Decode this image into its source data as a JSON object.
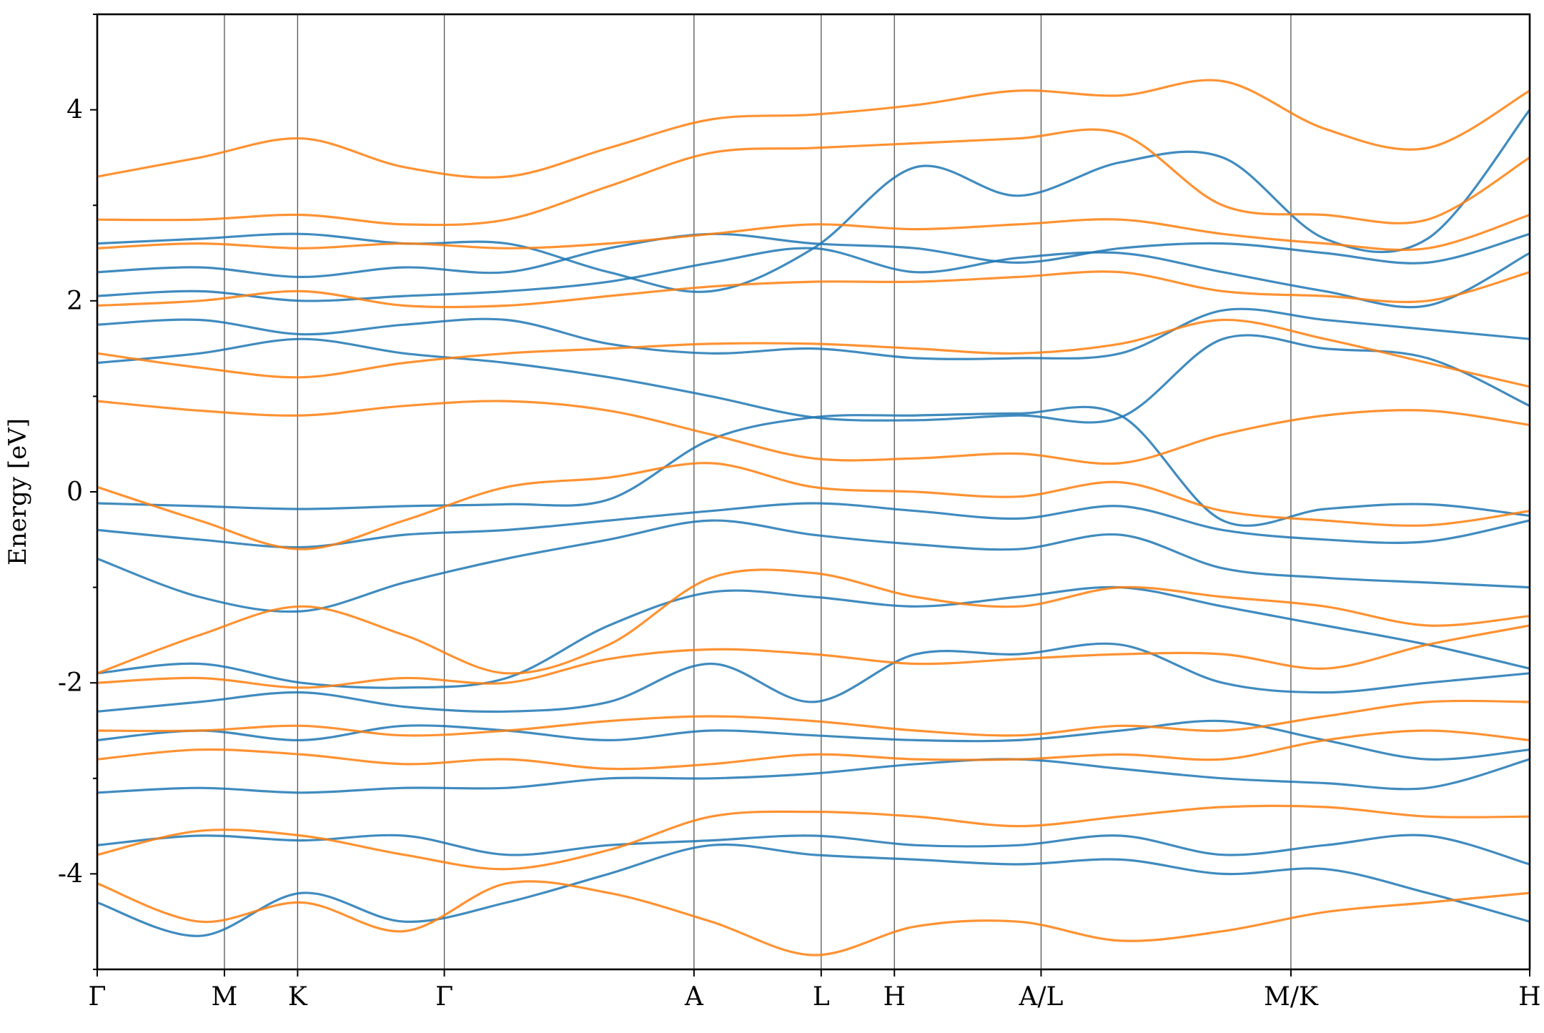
{
  "chart_data": {
    "type": "line",
    "title": "",
    "xlabel": "",
    "ylabel": "Energy [eV]",
    "ylim": [
      -5,
      5
    ],
    "yticks": [
      -4,
      -2,
      0,
      2,
      4
    ],
    "yticklabels": [
      "-4",
      "-2",
      "0",
      "2",
      "4"
    ],
    "grid": false,
    "legend": "none",
    "xticks": [
      {
        "label": "Γ",
        "k": 0.0
      },
      {
        "label": "M",
        "k": 0.0888
      },
      {
        "label": "K",
        "k": 0.1399
      },
      {
        "label": "Γ",
        "k": 0.2423
      },
      {
        "label": "A",
        "k": 0.4166
      },
      {
        "label": "L",
        "k": 0.5054
      },
      {
        "label": "H",
        "k": 0.5565
      },
      {
        "label": "A/L",
        "k": 0.6589
      },
      {
        "label": "M/K",
        "k": 0.8333
      },
      {
        "label": "H",
        "k": 1.0
      }
    ],
    "series_colors": {
      "spin_a": "#1f77b4",
      "spin_b": "#ff7f0e"
    },
    "series": [
      {
        "color": "#1f77b4",
        "values": [
          [
            -0.12,
            -0.15,
            -0.18,
            -0.15,
            -0.13,
            -0.08,
            0.55,
            0.78,
            0.8,
            0.82,
            0.8,
            -0.3,
            -0.18,
            -0.13,
            -0.25
          ],
          [
            -0.4,
            -0.5,
            -0.58,
            -0.45,
            -0.4,
            -0.3,
            -0.2,
            -0.12,
            -0.2,
            -0.28,
            -0.15,
            -0.4,
            -0.5,
            -0.52,
            -0.3
          ],
          [
            -0.7,
            -1.1,
            -1.25,
            -0.95,
            -0.7,
            -0.5,
            -0.3,
            -0.45,
            -0.55,
            -0.6,
            -0.45,
            -0.8,
            -0.9,
            -0.95,
            -1.0
          ],
          [
            -1.9,
            -1.8,
            -2.0,
            -2.05,
            -1.95,
            -1.4,
            -1.05,
            -1.1,
            -1.2,
            -1.1,
            -1.0,
            -1.2,
            -1.4,
            -1.6,
            -1.85
          ],
          [
            -2.3,
            -2.2,
            -2.1,
            -2.25,
            -2.3,
            -2.2,
            -1.8,
            -2.2,
            -1.7,
            -1.7,
            -1.6,
            -2.0,
            -2.1,
            -2.0,
            -1.9
          ],
          [
            -2.6,
            -2.5,
            -2.6,
            -2.45,
            -2.5,
            -2.6,
            -2.5,
            -2.55,
            -2.6,
            -2.6,
            -2.5,
            -2.4,
            -2.6,
            -2.8,
            -2.7
          ],
          [
            -3.15,
            -3.1,
            -3.15,
            -3.1,
            -3.1,
            -3.0,
            -3.0,
            -2.95,
            -2.85,
            -2.8,
            -2.9,
            -3.0,
            -3.05,
            -3.1,
            -2.8
          ],
          [
            -3.7,
            -3.6,
            -3.65,
            -3.6,
            -3.8,
            -3.7,
            -3.65,
            -3.6,
            -3.7,
            -3.7,
            -3.6,
            -3.8,
            -3.7,
            -3.6,
            -3.9
          ],
          [
            -4.3,
            -4.65,
            -4.2,
            -4.5,
            -4.3,
            -4.0,
            -3.7,
            -3.8,
            -3.85,
            -3.9,
            -3.85,
            -4.0,
            -3.95,
            -4.2,
            -4.5
          ],
          [
            1.35,
            1.45,
            1.6,
            1.45,
            1.35,
            1.2,
            1.0,
            0.78,
            0.75,
            0.8,
            0.78,
            1.6,
            1.5,
            1.4,
            0.9
          ],
          [
            1.75,
            1.8,
            1.65,
            1.75,
            1.8,
            1.55,
            1.45,
            1.5,
            1.4,
            1.4,
            1.45,
            1.9,
            1.8,
            1.7,
            1.6
          ],
          [
            2.05,
            2.1,
            2.0,
            2.05,
            2.1,
            2.2,
            2.4,
            2.55,
            2.3,
            2.45,
            2.5,
            2.3,
            2.1,
            1.95,
            2.5
          ],
          [
            2.3,
            2.35,
            2.25,
            2.35,
            2.3,
            2.55,
            2.7,
            2.6,
            2.55,
            2.4,
            2.55,
            2.6,
            2.5,
            2.4,
            2.7
          ],
          [
            2.6,
            2.65,
            2.7,
            2.6,
            2.6,
            2.3,
            2.1,
            2.55,
            3.4,
            3.1,
            3.45,
            3.5,
            2.65,
            2.65,
            4.0
          ]
        ]
      },
      {
        "color": "#ff7f0e",
        "values": [
          [
            0.05,
            -0.3,
            -0.6,
            -0.3,
            0.05,
            0.15,
            0.3,
            0.05,
            0.0,
            -0.05,
            0.1,
            -0.2,
            -0.3,
            -0.35,
            -0.2
          ],
          [
            -1.9,
            -1.5,
            -1.2,
            -1.5,
            -1.9,
            -1.6,
            -0.9,
            -0.85,
            -1.1,
            -1.2,
            -1.0,
            -1.1,
            -1.2,
            -1.4,
            -1.3
          ],
          [
            -2.0,
            -1.95,
            -2.05,
            -1.95,
            -2.0,
            -1.75,
            -1.65,
            -1.7,
            -1.8,
            -1.75,
            -1.7,
            -1.7,
            -1.85,
            -1.6,
            -1.4
          ],
          [
            -2.5,
            -2.5,
            -2.45,
            -2.55,
            -2.5,
            -2.4,
            -2.35,
            -2.4,
            -2.5,
            -2.55,
            -2.45,
            -2.5,
            -2.35,
            -2.2,
            -2.2
          ],
          [
            -2.8,
            -2.7,
            -2.75,
            -2.85,
            -2.8,
            -2.9,
            -2.85,
            -2.75,
            -2.8,
            -2.8,
            -2.75,
            -2.8,
            -2.6,
            -2.5,
            -2.6
          ],
          [
            -3.8,
            -3.55,
            -3.6,
            -3.8,
            -3.95,
            -3.75,
            -3.4,
            -3.35,
            -3.4,
            -3.5,
            -3.4,
            -3.3,
            -3.3,
            -3.4,
            -3.4
          ],
          [
            -4.1,
            -4.5,
            -4.3,
            -4.6,
            -4.1,
            -4.2,
            -4.5,
            -4.85,
            -4.55,
            -4.5,
            -4.7,
            -4.6,
            -4.4,
            -4.3,
            -4.2
          ],
          [
            0.95,
            0.85,
            0.8,
            0.9,
            0.95,
            0.85,
            0.6,
            0.35,
            0.35,
            0.4,
            0.3,
            0.6,
            0.8,
            0.85,
            0.7
          ],
          [
            1.45,
            1.3,
            1.2,
            1.35,
            1.45,
            1.5,
            1.55,
            1.55,
            1.5,
            1.45,
            1.55,
            1.8,
            1.6,
            1.35,
            1.1
          ],
          [
            1.95,
            2.0,
            2.1,
            1.95,
            1.95,
            2.05,
            2.15,
            2.2,
            2.2,
            2.25,
            2.3,
            2.1,
            2.05,
            2.0,
            2.3
          ],
          [
            2.55,
            2.6,
            2.55,
            2.6,
            2.55,
            2.6,
            2.7,
            2.8,
            2.75,
            2.8,
            2.85,
            2.7,
            2.6,
            2.55,
            2.9
          ],
          [
            2.85,
            2.85,
            2.9,
            2.8,
            2.85,
            3.2,
            3.55,
            3.6,
            3.65,
            3.7,
            3.75,
            3.0,
            2.9,
            2.85,
            3.5
          ],
          [
            3.3,
            3.5,
            3.7,
            3.4,
            3.3,
            3.6,
            3.9,
            3.95,
            4.05,
            4.2,
            4.15,
            4.3,
            3.8,
            3.6,
            4.2
          ]
        ]
      }
    ]
  }
}
